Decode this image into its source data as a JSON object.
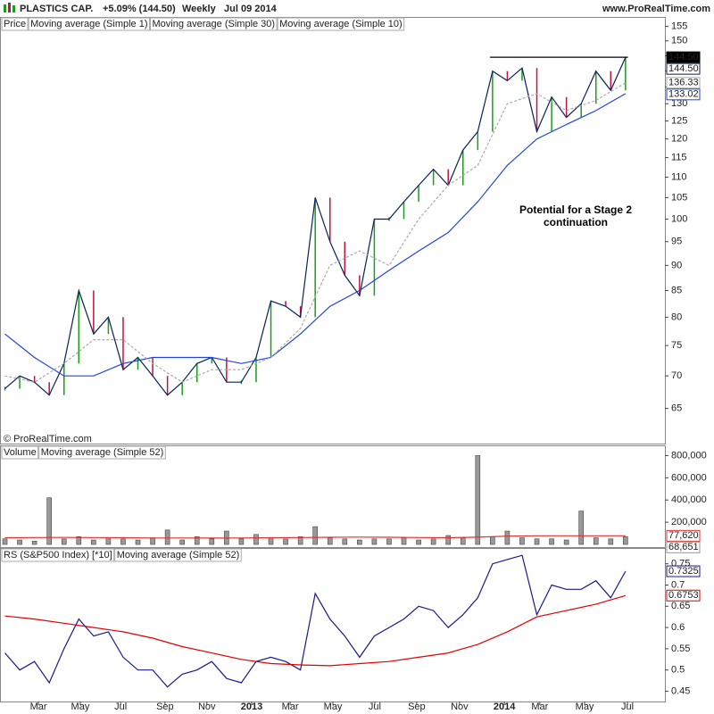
{
  "header": {
    "title": "PLASTICS CAP.",
    "change": "+5.09% (144.50)",
    "period": "Weekly",
    "date": "Jul 09 2014",
    "site": "www.ProRealTime.com",
    "copyright": "© ProRealTime.com"
  },
  "chart_data": [
    {
      "type": "stock",
      "log_scale": true,
      "xlim": [
        -1,
        134
      ],
      "ylim": [
        60.5,
        155.5
      ],
      "yticks": [
        65,
        70,
        75,
        80,
        85,
        90,
        95,
        100,
        105,
        110,
        115,
        120,
        125,
        130,
        135,
        140,
        145,
        150,
        155
      ],
      "annotation": [
        "Potential for a Stage 2",
        "continuation"
      ],
      "hline": {
        "y": 144.5,
        "x": [
          98.5,
          126.5
        ]
      },
      "series": [
        {
          "name": "Price",
          "type": "change_bar",
          "color": "#000000",
          "up_color": "#1a9e1a",
          "down_color": "#c0143c",
          "last_value_label": "144.50",
          "x": [
            0,
            3,
            6,
            9,
            12,
            15,
            18,
            21,
            24,
            27,
            30,
            33,
            36,
            39,
            42,
            45,
            48,
            51,
            54,
            57,
            60,
            63,
            66,
            69,
            72,
            75,
            78,
            81,
            84,
            87,
            90,
            93,
            96,
            99,
            102,
            105,
            108,
            111,
            114,
            117,
            120,
            123,
            126
          ],
          "values": [
            68,
            70,
            69,
            67,
            72,
            85,
            77,
            80,
            71,
            73,
            70,
            67,
            69,
            72,
            73,
            69,
            69,
            73,
            83,
            82,
            80,
            105,
            95,
            88,
            84,
            100,
            100,
            104,
            108,
            112,
            108,
            117,
            122,
            140,
            137,
            141,
            122,
            132,
            126,
            130,
            140,
            134,
            144.5
          ]
        },
        {
          "name": "Moving average (Simple 1)",
          "type": "line",
          "color": "#0a1f5c",
          "last_value_label": "144.50",
          "x": [
            0,
            3,
            6,
            9,
            12,
            15,
            18,
            21,
            24,
            27,
            30,
            33,
            36,
            39,
            42,
            45,
            48,
            51,
            54,
            57,
            60,
            63,
            66,
            69,
            72,
            75,
            78,
            81,
            84,
            87,
            90,
            93,
            96,
            99,
            102,
            105,
            108,
            111,
            114,
            117,
            120,
            123,
            126
          ],
          "values": [
            68,
            70,
            69,
            67,
            72,
            85,
            77,
            80,
            71,
            73,
            70,
            67,
            69,
            72,
            73,
            69,
            69,
            73,
            83,
            82,
            80,
            105,
            95,
            88,
            84,
            100,
            100,
            104,
            108,
            112,
            108,
            117,
            122,
            140,
            137,
            141,
            122,
            132,
            126,
            130,
            140,
            134,
            144.5
          ]
        },
        {
          "name": "Moving average (Simple 30)",
          "type": "line",
          "color": "#2244dd",
          "last_value_label": "133.02",
          "x": [
            0,
            6,
            12,
            18,
            24,
            30,
            36,
            42,
            48,
            54,
            60,
            66,
            72,
            78,
            84,
            90,
            96,
            102,
            108,
            114,
            120,
            126
          ],
          "values": [
            77,
            73,
            70,
            70,
            72,
            73,
            73,
            73,
            72,
            73,
            77,
            82,
            85,
            89,
            93,
            97,
            104,
            113,
            120,
            124,
            128,
            133.02
          ]
        },
        {
          "name": "Moving average (Simple 10)",
          "type": "line",
          "dashed": true,
          "color": "#aaaaaa",
          "last_value_label": "136.33",
          "x": [
            0,
            6,
            12,
            18,
            24,
            30,
            36,
            42,
            48,
            54,
            60,
            66,
            72,
            78,
            84,
            90,
            96,
            102,
            108,
            114,
            120,
            126
          ],
          "values": [
            70,
            69,
            72,
            76,
            76,
            72,
            69,
            71,
            71,
            73,
            78,
            90,
            93,
            90,
            100,
            108,
            113,
            130,
            133,
            128,
            131,
            136.33
          ]
        }
      ]
    },
    {
      "type": "bar",
      "xlim": [
        -1,
        134
      ],
      "ylim": [
        0,
        860000
      ],
      "yticks": [
        {
          "value": 200000,
          "label": "200,000"
        },
        {
          "value": 400000,
          "label": "400,000"
        },
        {
          "value": 600000,
          "label": "600,000"
        },
        {
          "value": 800000,
          "label": "800,000"
        }
      ],
      "series": [
        {
          "name": "Volume",
          "type": "column",
          "color": "#999999",
          "last_value_label": "68,651",
          "x": [
            0,
            3,
            6,
            9,
            12,
            15,
            18,
            21,
            24,
            27,
            30,
            33,
            36,
            39,
            42,
            45,
            48,
            51,
            54,
            57,
            60,
            63,
            66,
            69,
            72,
            75,
            78,
            81,
            84,
            87,
            90,
            93,
            96,
            99,
            102,
            105,
            108,
            111,
            114,
            117,
            120,
            123,
            126
          ],
          "values": [
            50000,
            40000,
            30000,
            420000,
            50000,
            70000,
            40000,
            60000,
            50000,
            40000,
            60000,
            130000,
            40000,
            70000,
            50000,
            120000,
            50000,
            90000,
            60000,
            50000,
            70000,
            160000,
            60000,
            50000,
            40000,
            50000,
            50000,
            60000,
            40000,
            50000,
            80000,
            60000,
            800000,
            70000,
            120000,
            60000,
            50000,
            50000,
            40000,
            300000,
            60000,
            50000,
            68651
          ]
        },
        {
          "name": "Moving average (Simple 52)",
          "type": "line",
          "color": "#e03030",
          "last_value_label": "77,620",
          "x": [
            0,
            6,
            12,
            18,
            24,
            30,
            36,
            42,
            48,
            54,
            60,
            66,
            72,
            78,
            84,
            90,
            96,
            102,
            108,
            114,
            120,
            126
          ],
          "values": [
            60000,
            62000,
            63000,
            62000,
            60000,
            58000,
            58000,
            57000,
            58000,
            60000,
            62000,
            64000,
            66000,
            64000,
            62000,
            60000,
            65000,
            75000,
            78000,
            78000,
            78000,
            77620
          ]
        }
      ]
    },
    {
      "type": "line",
      "xlim": [
        -1,
        134
      ],
      "ylim": [
        0.43,
        0.783
      ],
      "yticks": [
        0.45,
        0.5,
        0.55,
        0.6,
        0.65,
        0.7,
        0.75
      ],
      "xticks": [
        {
          "value": 6.8,
          "label": "Mar"
        },
        {
          "value": 15.3,
          "label": "May"
        },
        {
          "value": 23.5,
          "label": "Jul"
        },
        {
          "value": 32.5,
          "label": "Sep"
        },
        {
          "value": 41,
          "label": "Nov"
        },
        {
          "value": 50.1,
          "label": "2013"
        },
        {
          "value": 57.9,
          "label": "Mar"
        },
        {
          "value": 66.6,
          "label": "May"
        },
        {
          "value": 75.1,
          "label": "Jul"
        },
        {
          "value": 83.6,
          "label": "Sep"
        },
        {
          "value": 92.3,
          "label": "Nov"
        },
        {
          "value": 101.4,
          "label": "2014"
        },
        {
          "value": 108.6,
          "label": "Mar"
        },
        {
          "value": 117.7,
          "label": "May"
        },
        {
          "value": 126.4,
          "label": "Jul"
        }
      ],
      "series": [
        {
          "name": "RS (S&P500 Index) [*10]",
          "type": "line",
          "color": "#1a1a8c",
          "last_value_label": "0.7325",
          "x": [
            0,
            3,
            6,
            9,
            12,
            15,
            18,
            21,
            24,
            27,
            30,
            33,
            36,
            39,
            42,
            45,
            48,
            51,
            54,
            57,
            60,
            63,
            66,
            69,
            72,
            75,
            78,
            81,
            84,
            87,
            90,
            93,
            96,
            99,
            102,
            105,
            108,
            111,
            114,
            117,
            120,
            123,
            126
          ],
          "values": [
            0.54,
            0.5,
            0.52,
            0.47,
            0.55,
            0.62,
            0.58,
            0.59,
            0.53,
            0.5,
            0.5,
            0.46,
            0.49,
            0.5,
            0.52,
            0.48,
            0.47,
            0.52,
            0.53,
            0.52,
            0.5,
            0.68,
            0.62,
            0.58,
            0.53,
            0.58,
            0.6,
            0.62,
            0.65,
            0.64,
            0.6,
            0.63,
            0.67,
            0.75,
            0.76,
            0.77,
            0.63,
            0.7,
            0.69,
            0.69,
            0.71,
            0.67,
            0.7325
          ]
        },
        {
          "name": "Moving average (Simple 52)",
          "type": "line",
          "color": "#e00000",
          "last_value_label": "0.6753",
          "x": [
            0,
            6,
            12,
            18,
            24,
            30,
            36,
            42,
            48,
            54,
            60,
            66,
            72,
            78,
            84,
            90,
            96,
            102,
            108,
            114,
            120,
            126
          ],
          "values": [
            0.627,
            0.62,
            0.61,
            0.6,
            0.59,
            0.575,
            0.555,
            0.54,
            0.525,
            0.515,
            0.512,
            0.51,
            0.515,
            0.52,
            0.53,
            0.54,
            0.56,
            0.59,
            0.625,
            0.64,
            0.655,
            0.6753
          ]
        }
      ]
    }
  ]
}
